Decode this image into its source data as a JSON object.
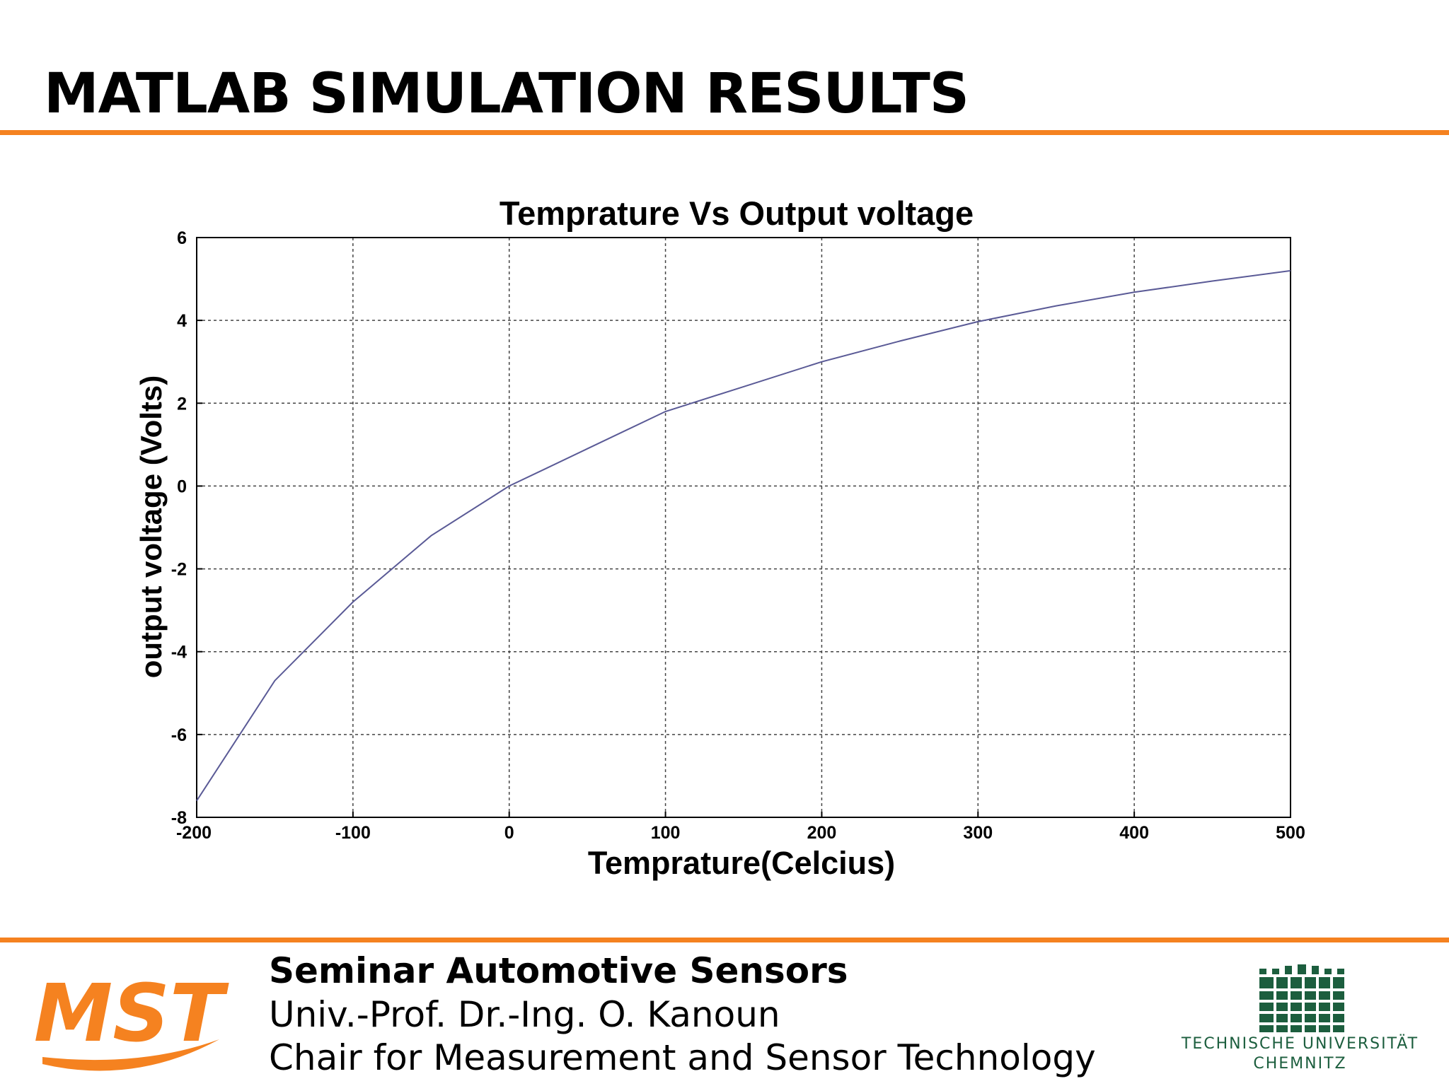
{
  "slide": {
    "title": "MATLAB SIMULATION RESULTS"
  },
  "footer": {
    "seminar": "Seminar Automotive Sensors",
    "professor": "Univ.-Prof. Dr.-Ing. O. Kanoun",
    "chair": "Chair for Measurement and Sensor Technology",
    "left_logo_text": "MST",
    "right_logo_line1": "TECHNISCHE UNIVERSITÄT",
    "right_logo_line2": "CHEMNITZ"
  },
  "colors": {
    "accent": "#f58220",
    "line": "#5a5a96",
    "tu_green": "#1c5e3e"
  },
  "chart_data": {
    "type": "line",
    "title": "Temprature Vs Output voltage",
    "xlabel": "Temprature(Celcius)",
    "ylabel": "output voltage (Volts)",
    "xlim": [
      -200,
      500
    ],
    "ylim": [
      -8,
      6
    ],
    "xticks": [
      -200,
      -100,
      0,
      100,
      200,
      300,
      400,
      500
    ],
    "yticks": [
      -8,
      -6,
      -4,
      -2,
      0,
      2,
      4,
      6
    ],
    "grid": true,
    "series": [
      {
        "x": [
          -200,
          -150,
          -100,
          -50,
          0,
          50,
          100,
          150,
          200,
          250,
          300,
          350,
          400,
          450,
          500
        ],
        "y": [
          -7.6,
          -4.7,
          -2.8,
          -1.2,
          0.0,
          0.9,
          1.8,
          2.4,
          3.0,
          3.5,
          3.97,
          4.35,
          4.68,
          4.95,
          5.2
        ]
      }
    ]
  }
}
